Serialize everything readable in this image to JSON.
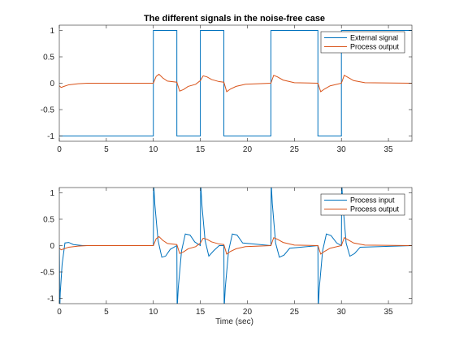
{
  "chart_data": [
    {
      "type": "line",
      "title": "The different signals in the noise-free case",
      "xlabel": "",
      "ylabel": "",
      "xlim": [
        0,
        37.5
      ],
      "ylim": [
        -1.1,
        1.1
      ],
      "xticks": [
        0,
        5,
        10,
        15,
        20,
        25,
        30,
        35
      ],
      "xtick_labels": [
        "0",
        "5",
        "10",
        "15",
        "20",
        "25",
        "30",
        "35"
      ],
      "yticks": [
        1,
        0.5,
        0,
        -0.5,
        -1
      ],
      "ytick_labels": [
        "1",
        "0.5",
        "0",
        "-0.5",
        "-1"
      ],
      "legend_position": "top-right",
      "series": [
        {
          "name": "External signal",
          "color": "#0072BD",
          "kind": "step",
          "x": [
            0,
            10,
            10,
            12.5,
            12.5,
            15,
            15,
            17.5,
            17.5,
            22.5,
            22.5,
            27.5,
            27.5,
            30,
            30,
            37.5
          ],
          "y": [
            -1,
            -1,
            1,
            1,
            -1,
            -1,
            1,
            1,
            -1,
            -1,
            1,
            1,
            -1,
            -1,
            1,
            1
          ]
        },
        {
          "name": "Process output",
          "color": "#D95319",
          "kind": "line",
          "x": [
            0,
            0.2,
            0.5,
            1,
            2,
            3,
            10,
            10.3,
            10.6,
            11,
            11.5,
            12.5,
            12.8,
            13.2,
            13.7,
            14.5,
            15,
            15.3,
            15.7,
            16.2,
            17,
            17.5,
            17.8,
            18.2,
            18.8,
            19.8,
            22.5,
            22.8,
            23.2,
            23.8,
            25,
            27.5,
            27.8,
            28.2,
            28.8,
            30,
            30.3,
            30.7,
            31.3,
            32.5,
            37.5
          ],
          "y": [
            -0.05,
            -0.08,
            -0.06,
            -0.03,
            -0.01,
            0,
            0,
            0.13,
            0.17,
            0.1,
            0.04,
            0.02,
            -0.15,
            -0.12,
            -0.06,
            -0.02,
            0.05,
            0.14,
            0.12,
            0.07,
            0.03,
            0.02,
            -0.16,
            -0.11,
            -0.06,
            -0.02,
            0,
            0.15,
            0.12,
            0.06,
            0.01,
            0,
            -0.16,
            -0.11,
            -0.05,
            0,
            0.15,
            0.11,
            0.05,
            0.01,
            0
          ]
        }
      ]
    },
    {
      "type": "line",
      "title": "",
      "xlabel": "Time (sec)",
      "ylabel": "",
      "xlim": [
        0,
        37.5
      ],
      "ylim": [
        -1.1,
        1.1
      ],
      "xticks": [
        0,
        5,
        10,
        15,
        20,
        25,
        30,
        35
      ],
      "xtick_labels": [
        "0",
        "5",
        "10",
        "15",
        "20",
        "25",
        "30",
        "35"
      ],
      "yticks": [
        1,
        0.5,
        0,
        -0.5,
        -1
      ],
      "ytick_labels": [
        "1",
        "0.5",
        "0",
        "-0.5",
        "-1"
      ],
      "legend_position": "top-right",
      "series": [
        {
          "name": "Process input",
          "color": "#0072BD",
          "kind": "line",
          "x": [
            0,
            0.05,
            0.1,
            0.3,
            0.6,
            1,
            1.5,
            2.5,
            10,
            10.03,
            10.15,
            10.5,
            10.9,
            11.3,
            11.8,
            12.5,
            12.53,
            12.65,
            13,
            13.4,
            13.9,
            14.4,
            15,
            15.03,
            15.15,
            15.5,
            15.9,
            16.4,
            17,
            17.5,
            17.53,
            17.65,
            18,
            18.4,
            18.9,
            19.5,
            22.5,
            22.53,
            22.65,
            23,
            23.4,
            23.9,
            24.5,
            27.5,
            27.53,
            27.65,
            28,
            28.4,
            28.9,
            29.5,
            30,
            30.03,
            30.15,
            30.5,
            30.9,
            31.4,
            32,
            37.5
          ],
          "y": [
            0,
            -1.2,
            -0.9,
            -0.35,
            0.05,
            0.06,
            0.02,
            0,
            0,
            1.2,
            0.8,
            0.1,
            -0.22,
            -0.2,
            -0.07,
            0,
            -1.2,
            -0.8,
            -0.1,
            0.22,
            0.2,
            0.07,
            0,
            1.2,
            0.8,
            0.1,
            -0.2,
            -0.1,
            0,
            0,
            -1.2,
            -0.8,
            -0.1,
            0.22,
            0.2,
            0.05,
            0,
            1.2,
            0.8,
            0.05,
            -0.22,
            -0.18,
            -0.05,
            0,
            -1.2,
            -0.8,
            -0.1,
            0.22,
            0.19,
            0.05,
            0,
            1.2,
            0.8,
            0.05,
            -0.2,
            -0.15,
            -0.03,
            0
          ]
        },
        {
          "name": "Process output",
          "color": "#D95319",
          "kind": "line",
          "x": [
            0,
            0.2,
            0.5,
            1,
            2,
            3,
            10,
            10.3,
            10.6,
            11,
            11.5,
            12.5,
            12.8,
            13.2,
            13.7,
            14.5,
            15,
            15.3,
            15.7,
            16.2,
            17,
            17.5,
            17.8,
            18.2,
            18.8,
            19.8,
            22.5,
            22.8,
            23.2,
            23.8,
            25,
            27.5,
            27.8,
            28.2,
            28.8,
            30,
            30.3,
            30.7,
            31.3,
            32.5,
            37.5
          ],
          "y": [
            -0.05,
            -0.08,
            -0.06,
            -0.03,
            -0.01,
            0,
            0,
            0.13,
            0.17,
            0.1,
            0.04,
            0.02,
            -0.15,
            -0.12,
            -0.06,
            -0.02,
            0.05,
            0.14,
            0.12,
            0.07,
            0.03,
            0.02,
            -0.16,
            -0.11,
            -0.06,
            -0.02,
            0,
            0.15,
            0.12,
            0.06,
            0.01,
            0,
            -0.16,
            -0.11,
            -0.05,
            0,
            0.15,
            0.11,
            0.05,
            0.01,
            0
          ]
        }
      ]
    }
  ]
}
